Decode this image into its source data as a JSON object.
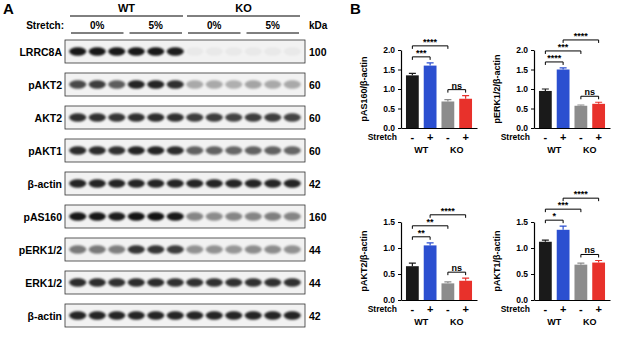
{
  "panel_a": {
    "label": "A",
    "stretch_label": "Stretch:",
    "kda_label": "kDa",
    "lanes_per_condition": 3,
    "groups": [
      {
        "label": "WT",
        "conditions": [
          "0%",
          "5%"
        ]
      },
      {
        "label": "KO",
        "conditions": [
          "0%",
          "5%"
        ]
      }
    ],
    "rows": [
      {
        "label": "LRRC8A",
        "kda": 100,
        "intensity": [
          0.9,
          0.9,
          0.9,
          0.9,
          0.9,
          0.88,
          0.04,
          0.04,
          0.04,
          0.04,
          0.04,
          0.04
        ]
      },
      {
        "label": "pAKT2",
        "kda": 60,
        "intensity": [
          0.7,
          0.75,
          0.62,
          0.85,
          0.85,
          0.8,
          0.3,
          0.3,
          0.28,
          0.32,
          0.3,
          0.3
        ]
      },
      {
        "label": "AKT2",
        "kda": 60,
        "intensity": [
          0.8,
          0.8,
          0.78,
          0.8,
          0.82,
          0.8,
          0.75,
          0.75,
          0.72,
          0.75,
          0.75,
          0.72
        ]
      },
      {
        "label": "pAKT1",
        "kda": 60,
        "intensity": [
          0.82,
          0.82,
          0.8,
          0.85,
          0.85,
          0.82,
          0.6,
          0.6,
          0.58,
          0.6,
          0.6,
          0.58
        ]
      },
      {
        "label": "β-actin",
        "kda": 42,
        "intensity": [
          0.85,
          0.85,
          0.85,
          0.85,
          0.85,
          0.85,
          0.85,
          0.85,
          0.85,
          0.85,
          0.85,
          0.85
        ]
      },
      {
        "label": "pAS160",
        "kda": 160,
        "intensity": [
          0.9,
          0.9,
          0.88,
          0.92,
          0.92,
          0.9,
          0.45,
          0.42,
          0.45,
          0.45,
          0.48,
          0.45
        ]
      },
      {
        "label": "pERK1/2",
        "kda": 44,
        "intensity": [
          0.5,
          0.5,
          0.48,
          0.78,
          0.78,
          0.75,
          0.4,
          0.4,
          0.38,
          0.42,
          0.42,
          0.4
        ]
      },
      {
        "label": "ERK1/2",
        "kda": 44,
        "intensity": [
          0.82,
          0.82,
          0.8,
          0.82,
          0.82,
          0.8,
          0.8,
          0.8,
          0.8,
          0.8,
          0.8,
          0.8
        ]
      },
      {
        "label": "β-actin",
        "kda": 42,
        "intensity": [
          0.85,
          0.85,
          0.85,
          0.85,
          0.85,
          0.85,
          0.85,
          0.85,
          0.85,
          0.85,
          0.85,
          0.85
        ]
      }
    ]
  },
  "panel_b_label": "B",
  "chart_data": [
    {
      "type": "bar",
      "y_label": "pAS160/β-actin",
      "x_label": "Stretch",
      "categories": [
        "-",
        "+",
        "-",
        "+"
      ],
      "values": [
        1.35,
        1.6,
        0.68,
        0.75
      ],
      "errors": [
        0.05,
        0.07,
        0.05,
        0.08
      ],
      "colors": [
        "#1a1a1a",
        "#2b4fd0",
        "#8c8c8c",
        "#e8312b"
      ],
      "groups": [
        {
          "label": "WT",
          "from": 0,
          "to": 1
        },
        {
          "label": "KO",
          "from": 2,
          "to": 3
        }
      ],
      "annotations": [
        {
          "from": 0,
          "to": 1,
          "label": "***"
        },
        {
          "from": 0,
          "to": 2,
          "label": "****"
        },
        {
          "from": 2,
          "to": 3,
          "label": "ns"
        }
      ],
      "ylim": [
        0,
        2
      ],
      "yticks": [
        {
          "value": 0,
          "label": "0.0"
        },
        0.5,
        {
          "value": 1,
          "label": "1.0"
        },
        1.5,
        {
          "value": 2,
          "label": "2.0"
        }
      ]
    },
    {
      "type": "bar",
      "y_label": "pERK1/2/β-actin",
      "x_label": "Stretch",
      "categories": [
        "-",
        "+",
        "-",
        "+"
      ],
      "values": [
        0.95,
        1.5,
        0.57,
        0.62
      ],
      "errors": [
        0.05,
        0.04,
        0.02,
        0.04
      ],
      "colors": [
        "#1a1a1a",
        "#2b4fd0",
        "#8c8c8c",
        "#e8312b"
      ],
      "groups": [
        {
          "label": "WT",
          "from": 0,
          "to": 1
        },
        {
          "label": "KO",
          "from": 2,
          "to": 3
        }
      ],
      "annotations": [
        {
          "from": 0,
          "to": 1,
          "label": "****"
        },
        {
          "from": 0,
          "to": 2,
          "label": "***"
        },
        {
          "from": 1,
          "to": 3,
          "label": "****"
        },
        {
          "from": 2,
          "to": 3,
          "label": "ns"
        }
      ],
      "ylim": [
        0,
        2
      ],
      "yticks": [
        {
          "value": 0,
          "label": "0.0"
        },
        0.5,
        {
          "value": 1,
          "label": "1.0"
        },
        1.5,
        {
          "value": 2,
          "label": "2.0"
        }
      ]
    },
    {
      "type": "bar",
      "y_label": "pAKT2/β-actin",
      "x_label": "Stretch",
      "categories": [
        "-",
        "+",
        "-",
        "+"
      ],
      "values": [
        0.65,
        1.05,
        0.32,
        0.37
      ],
      "errors": [
        0.06,
        0.05,
        0.03,
        0.05
      ],
      "colors": [
        "#1a1a1a",
        "#2b4fd0",
        "#8c8c8c",
        "#e8312b"
      ],
      "groups": [
        {
          "label": "WT",
          "from": 0,
          "to": 1
        },
        {
          "label": "KO",
          "from": 2,
          "to": 3
        }
      ],
      "annotations": [
        {
          "from": 0,
          "to": 1,
          "label": "**"
        },
        {
          "from": 0,
          "to": 2,
          "label": "**"
        },
        {
          "from": 1,
          "to": 3,
          "label": "****"
        },
        {
          "from": 2,
          "to": 3,
          "label": "ns"
        }
      ],
      "ylim": [
        0,
        1.5
      ],
      "yticks": [
        {
          "value": 0,
          "label": "0.0"
        },
        0.5,
        {
          "value": 1,
          "label": "1.0"
        },
        1.5
      ]
    },
    {
      "type": "bar",
      "y_label": "pAKT1/β-actin",
      "x_label": "Stretch",
      "categories": [
        "-",
        "+",
        "-",
        "+"
      ],
      "values": [
        1.12,
        1.35,
        0.68,
        0.72
      ],
      "errors": [
        0.03,
        0.07,
        0.03,
        0.04
      ],
      "colors": [
        "#1a1a1a",
        "#2b4fd0",
        "#8c8c8c",
        "#e8312b"
      ],
      "groups": [
        {
          "label": "WT",
          "from": 0,
          "to": 1
        },
        {
          "label": "KO",
          "from": 2,
          "to": 3
        }
      ],
      "annotations": [
        {
          "from": 0,
          "to": 1,
          "label": "*"
        },
        {
          "from": 0,
          "to": 2,
          "label": "***"
        },
        {
          "from": 1,
          "to": 3,
          "label": "****"
        },
        {
          "from": 2,
          "to": 3,
          "label": "ns"
        }
      ],
      "ylim": [
        0,
        1.5
      ],
      "yticks": [
        {
          "value": 0,
          "label": "0.0"
        },
        0.5,
        {
          "value": 1,
          "label": "1.0"
        },
        1.5
      ]
    }
  ]
}
